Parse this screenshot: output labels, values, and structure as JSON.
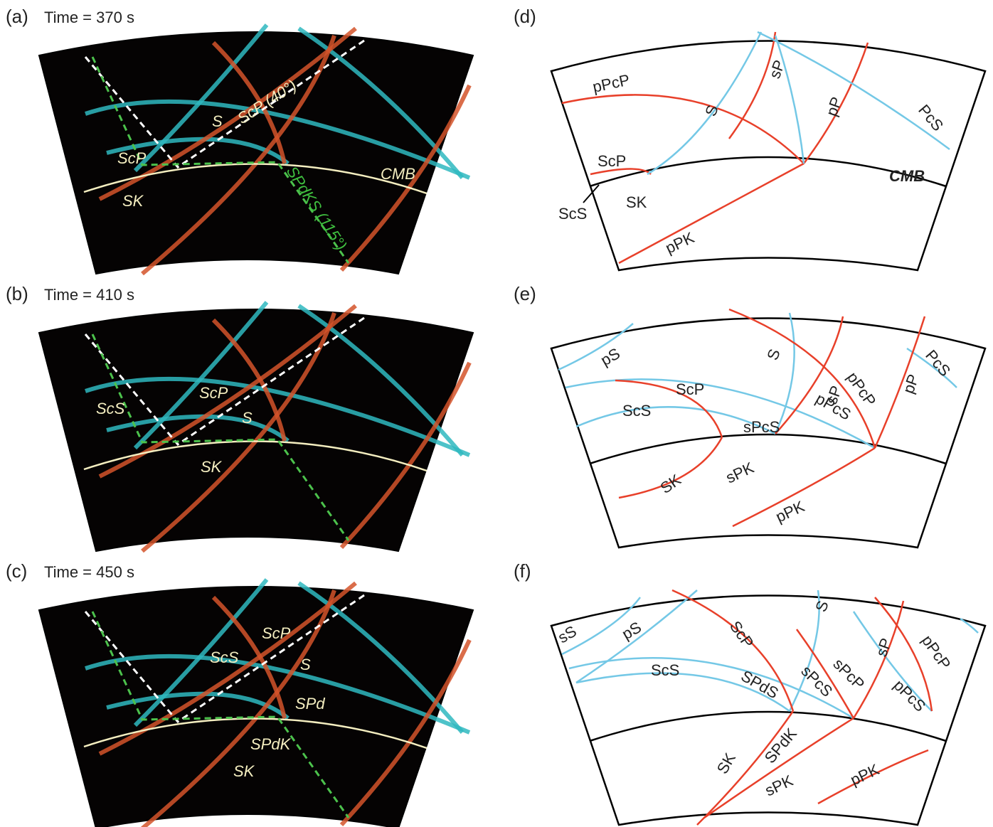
{
  "panels": [
    {
      "label": "(a)",
      "title": "Time = 370 s",
      "labels": [
        "ScP (40°)",
        "S",
        "ScP",
        "CMB",
        "SK",
        "SPdKS (115°)"
      ]
    },
    {
      "label": "(b)",
      "title": "Time = 410 s",
      "labels": [
        "ScP",
        "ScS",
        "S",
        "SK"
      ]
    },
    {
      "label": "(c)",
      "title": "Time = 450 s",
      "labels": [
        "ScP",
        "ScS",
        "S",
        "SPd",
        "SPdK",
        "SK"
      ]
    },
    {
      "label": "(d)",
      "labels": [
        "pPcP",
        "sP",
        "S",
        "pP",
        "PcS",
        "ScP",
        "CMB",
        "SK",
        "ScS",
        "pPK"
      ]
    },
    {
      "label": "(e)",
      "labels": [
        "pS",
        "S",
        "sP",
        "pPcP",
        "pP",
        "PcS",
        "ScP",
        "ScS",
        "pPcS",
        "sPcS",
        "SK",
        "sPK",
        "pPK"
      ]
    },
    {
      "label": "(f)",
      "labels": [
        "sS",
        "pS",
        "S",
        "ScP",
        "sP",
        "pPcP",
        "ScS",
        "SPdS",
        "sPcS",
        "sPcP",
        "pPcS",
        "SK",
        "SPdK",
        "sPK",
        "pPK"
      ]
    }
  ]
}
